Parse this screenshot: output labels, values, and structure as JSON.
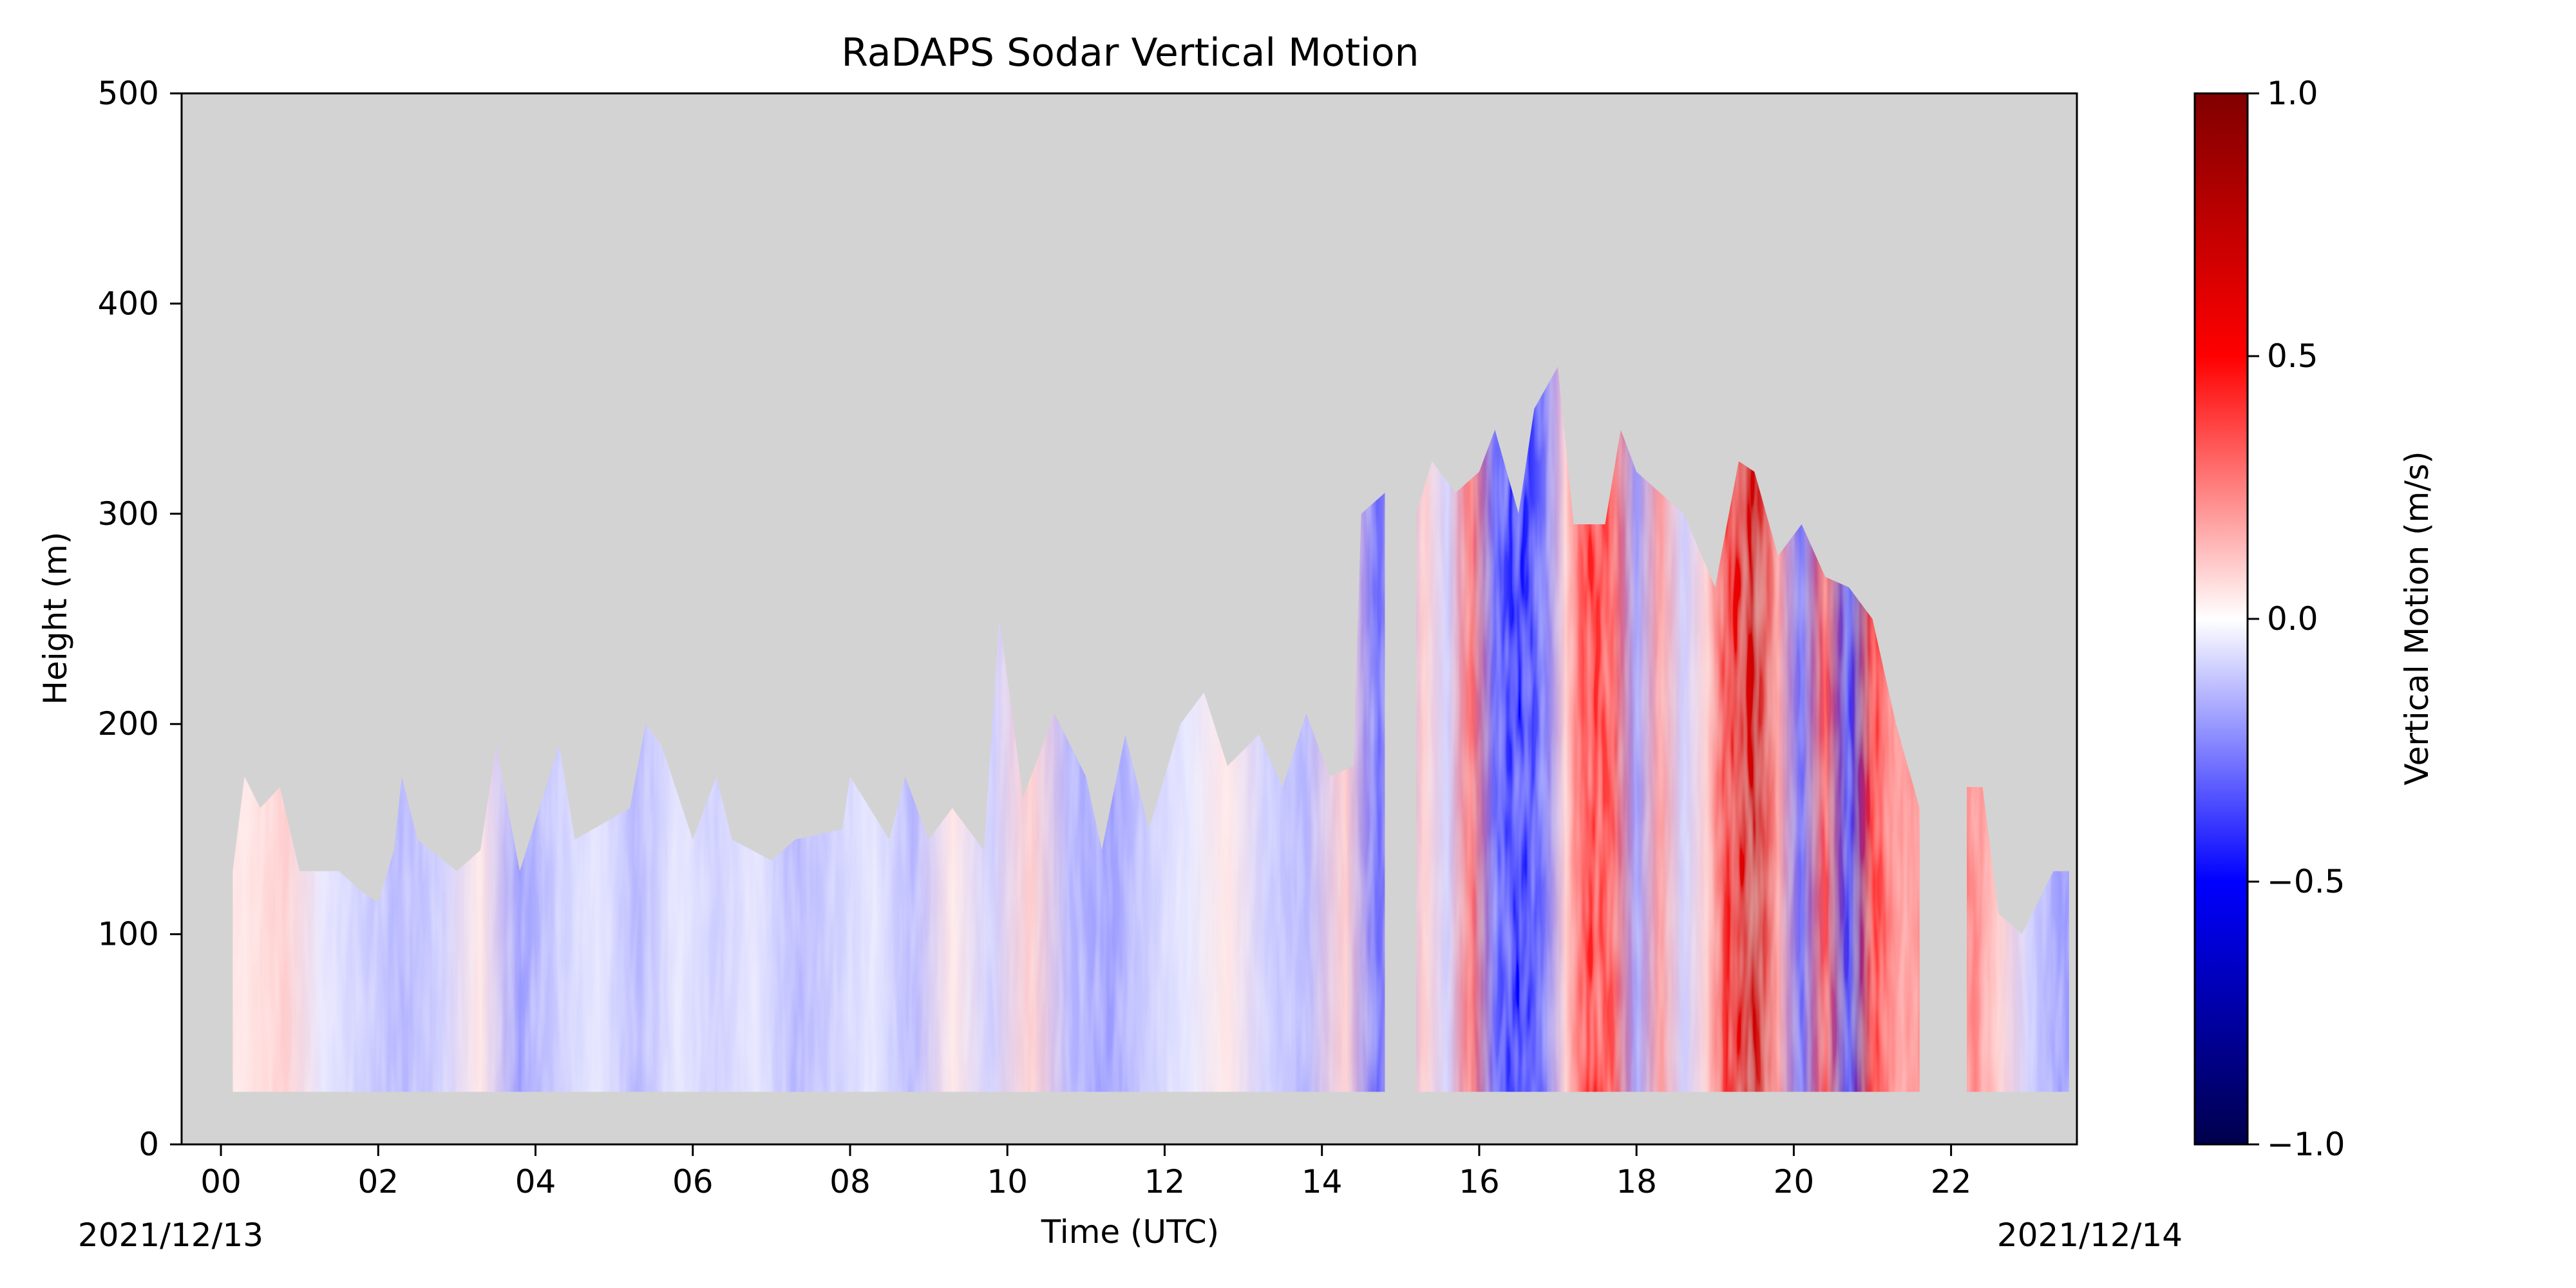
{
  "colors": {
    "no_data_background": "#d3d3d3",
    "colormap": "seismic",
    "colormap_stops": [
      "#00004c",
      "#0000ff",
      "#ffffff",
      "#ff0000",
      "#800000"
    ]
  },
  "chart_data": {
    "type": "heatmap",
    "title": "RaDAPS Sodar Vertical Motion",
    "xlabel": "Time (UTC)",
    "ylabel": "Height (m)",
    "date_start_label": "2021/12/13",
    "date_end_label": "2021/12/14",
    "xlim": [
      -0.5,
      23.6
    ],
    "ylim": [
      0,
      500
    ],
    "x_ticks": [
      0,
      2,
      4,
      6,
      8,
      10,
      12,
      14,
      16,
      18,
      20,
      22
    ],
    "x_tick_labels": [
      "00",
      "02",
      "04",
      "06",
      "08",
      "10",
      "12",
      "14",
      "16",
      "18",
      "20",
      "22"
    ],
    "y_ticks": [
      0,
      100,
      200,
      300,
      400,
      500
    ],
    "y_tick_labels": [
      "0",
      "100",
      "200",
      "300",
      "400",
      "500"
    ],
    "grid": false,
    "colorbar": {
      "label": "Vertical Motion (m/s)",
      "vmin": -1.0,
      "vmax": 1.0,
      "ticks": [
        -1.0,
        -0.5,
        0.0,
        0.5,
        1.0
      ],
      "tick_labels": [
        "−1.0",
        "−0.5",
        "0.0",
        "0.5",
        "1.0"
      ]
    },
    "measurement_floor_m": 25,
    "data_top_height_m": [
      [
        0.15,
        130
      ],
      [
        0.3,
        175
      ],
      [
        0.5,
        160
      ],
      [
        0.75,
        170
      ],
      [
        1.0,
        130
      ],
      [
        1.5,
        130
      ],
      [
        1.8,
        120
      ],
      [
        2.0,
        115
      ],
      [
        2.2,
        140
      ],
      [
        2.3,
        175
      ],
      [
        2.5,
        145
      ],
      [
        3.0,
        130
      ],
      [
        3.3,
        140
      ],
      [
        3.5,
        190
      ],
      [
        3.8,
        130
      ],
      [
        4.3,
        190
      ],
      [
        4.5,
        145
      ],
      [
        5.2,
        160
      ],
      [
        5.4,
        200
      ],
      [
        5.6,
        190
      ],
      [
        6.0,
        145
      ],
      [
        6.3,
        175
      ],
      [
        6.5,
        145
      ],
      [
        7.0,
        135
      ],
      [
        7.3,
        145
      ],
      [
        7.9,
        150
      ],
      [
        8.0,
        175
      ],
      [
        8.5,
        145
      ],
      [
        8.7,
        175
      ],
      [
        9.0,
        145
      ],
      [
        9.3,
        160
      ],
      [
        9.7,
        140
      ],
      [
        9.9,
        250
      ],
      [
        10.2,
        165
      ],
      [
        10.6,
        205
      ],
      [
        11.0,
        175
      ],
      [
        11.2,
        140
      ],
      [
        11.5,
        195
      ],
      [
        11.8,
        150
      ],
      [
        12.2,
        200
      ],
      [
        12.5,
        215
      ],
      [
        12.8,
        180
      ],
      [
        13.2,
        195
      ],
      [
        13.5,
        170
      ],
      [
        13.8,
        205
      ],
      [
        14.1,
        175
      ],
      [
        14.4,
        180
      ],
      [
        14.5,
        300
      ],
      [
        14.8,
        310
      ],
      [
        15.2,
        300
      ],
      [
        15.4,
        325
      ],
      [
        15.7,
        310
      ],
      [
        16.0,
        320
      ],
      [
        16.2,
        340
      ],
      [
        16.5,
        300
      ],
      [
        16.7,
        350
      ],
      [
        17.0,
        370
      ],
      [
        17.2,
        295
      ],
      [
        17.6,
        295
      ],
      [
        17.8,
        340
      ],
      [
        18.0,
        320
      ],
      [
        18.3,
        310
      ],
      [
        18.6,
        300
      ],
      [
        19.0,
        265
      ],
      [
        19.3,
        325
      ],
      [
        19.5,
        320
      ],
      [
        19.8,
        280
      ],
      [
        20.1,
        295
      ],
      [
        20.4,
        270
      ],
      [
        20.7,
        265
      ],
      [
        21.0,
        250
      ],
      [
        21.3,
        200
      ],
      [
        21.6,
        160
      ],
      [
        22.2,
        170
      ],
      [
        22.4,
        170
      ],
      [
        22.6,
        110
      ],
      [
        22.9,
        100
      ],
      [
        23.1,
        115
      ],
      [
        23.3,
        130
      ],
      [
        23.5,
        130
      ]
    ],
    "data_gaps_hours": [
      [
        14.82,
        15.1
      ],
      [
        21.65,
        22.15
      ]
    ],
    "data_extent_hours": [
      0.15,
      23.55
    ],
    "vertical_motion_by_hour_mps": [
      [
        0.3,
        0.05
      ],
      [
        0.8,
        0.1
      ],
      [
        1.3,
        -0.05
      ],
      [
        1.8,
        -0.1
      ],
      [
        2.3,
        -0.15
      ],
      [
        2.8,
        -0.1
      ],
      [
        3.3,
        0.05
      ],
      [
        3.8,
        -0.2
      ],
      [
        4.3,
        -0.1
      ],
      [
        4.8,
        -0.05
      ],
      [
        5.3,
        -0.15
      ],
      [
        5.8,
        -0.05
      ],
      [
        6.3,
        -0.1
      ],
      [
        6.8,
        -0.05
      ],
      [
        7.3,
        -0.15
      ],
      [
        7.8,
        -0.1
      ],
      [
        8.3,
        -0.05
      ],
      [
        8.8,
        -0.15
      ],
      [
        9.3,
        0.05
      ],
      [
        9.8,
        -0.1
      ],
      [
        10.3,
        0.1
      ],
      [
        10.8,
        -0.15
      ],
      [
        11.3,
        -0.2
      ],
      [
        11.8,
        -0.1
      ],
      [
        12.3,
        -0.05
      ],
      [
        12.8,
        0.05
      ],
      [
        13.3,
        -0.1
      ],
      [
        13.8,
        -0.15
      ],
      [
        14.3,
        0.1
      ],
      [
        14.7,
        -0.3
      ],
      [
        15.3,
        0.1
      ],
      [
        15.6,
        -0.1
      ],
      [
        15.9,
        0.3
      ],
      [
        16.2,
        -0.3
      ],
      [
        16.5,
        -0.5
      ],
      [
        16.8,
        -0.3
      ],
      [
        17.1,
        0.1
      ],
      [
        17.4,
        0.45
      ],
      [
        17.7,
        0.35
      ],
      [
        18.0,
        -0.2
      ],
      [
        18.3,
        0.2
      ],
      [
        18.6,
        -0.1
      ],
      [
        18.9,
        0.1
      ],
      [
        19.2,
        0.55
      ],
      [
        19.5,
        0.7
      ],
      [
        19.8,
        0.2
      ],
      [
        20.1,
        -0.3
      ],
      [
        20.4,
        0.35
      ],
      [
        20.7,
        -0.4
      ],
      [
        21.0,
        0.45
      ],
      [
        21.3,
        0.2
      ],
      [
        22.3,
        0.25
      ],
      [
        22.6,
        0.1
      ],
      [
        23.0,
        -0.1
      ],
      [
        23.4,
        -0.2
      ]
    ]
  }
}
